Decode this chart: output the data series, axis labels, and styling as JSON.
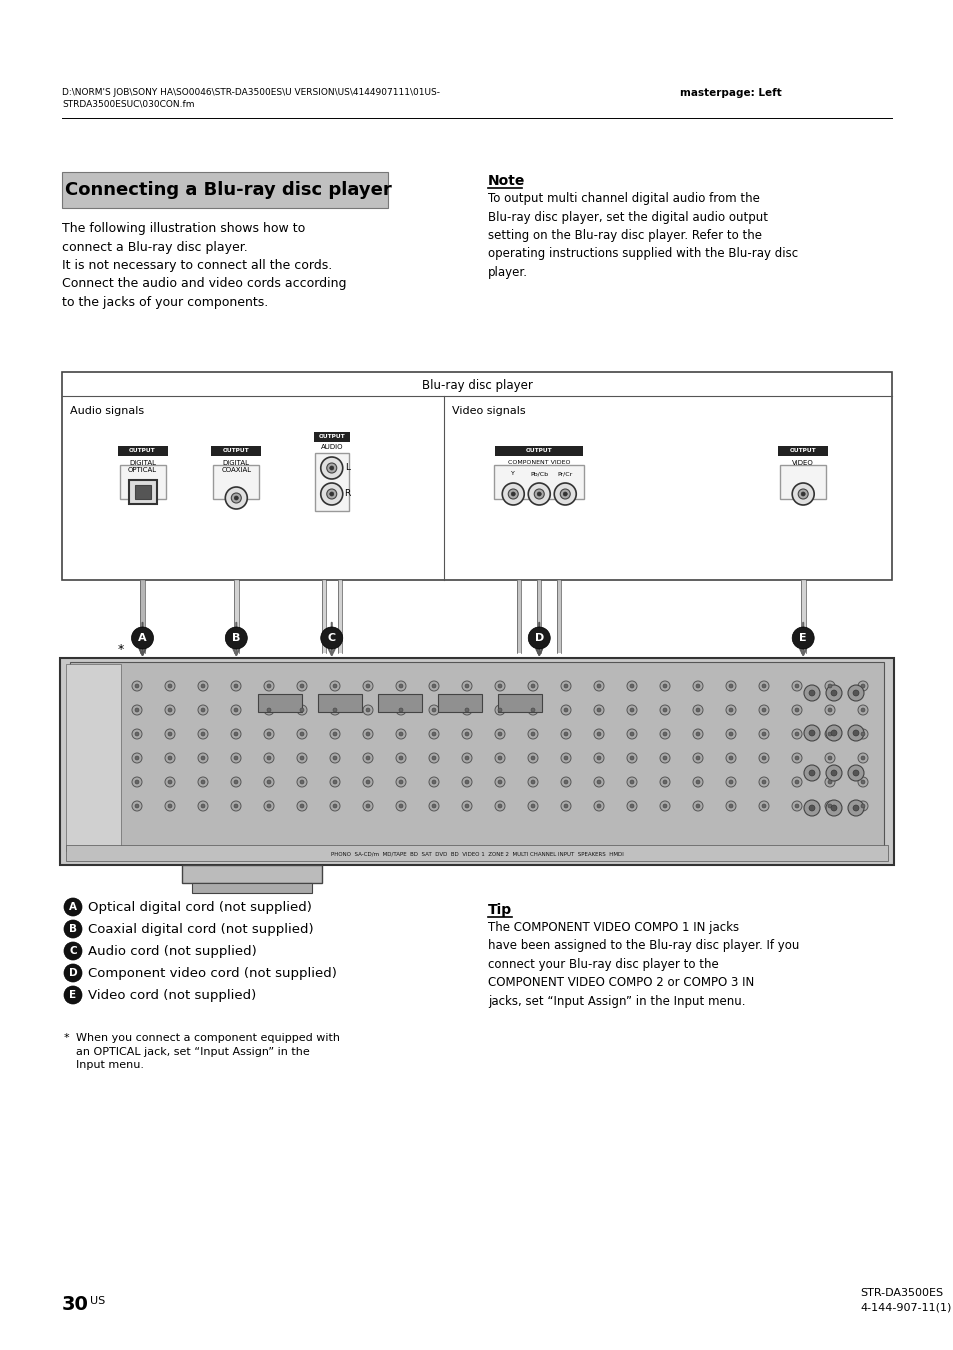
{
  "bg_color": "#ffffff",
  "header_text_left": "D:\\NORM'S JOB\\SONY HA\\SO0046\\STR-DA3500ES\\U VERSION\\US\\4144907111\\01US-\nSTRDA3500ESUC\\030CON.fm",
  "header_text_right": "masterpage: Left",
  "title": "Connecting a Blu-ray disc player",
  "title_bg": "#c0c0c0",
  "body_text_left": "The following illustration shows how to\nconnect a Blu-ray disc player.\nIt is not necessary to connect all the cords.\nConnect the audio and video cords according\nto the jacks of your components.",
  "note_title": "Note",
  "note_body": "To output multi channel digital audio from the\nBlu-ray disc player, set the digital audio output\nsetting on the Blu-ray disc player. Refer to the\noperating instructions supplied with the Blu-ray disc\nplayer.",
  "diagram_title": "Blu-ray disc player",
  "diagram_audio_label": "Audio signals",
  "diagram_video_label": "Video signals",
  "cable_labels": [
    {
      "letter": "A",
      "desc": "Optical digital cord (not supplied)"
    },
    {
      "letter": "B",
      "desc": "Coaxial digital cord (not supplied)"
    },
    {
      "letter": "C",
      "desc": "Audio cord (not supplied)"
    },
    {
      "letter": "D",
      "desc": "Component video cord (not supplied)"
    },
    {
      "letter": "E",
      "desc": "Video cord (not supplied)"
    }
  ],
  "footnote_star": "*",
  "footnote_text": "When you connect a component equipped with\nan OPTICAL jack, set “Input Assign” in the\nInput menu.",
  "tip_title": "Tip",
  "tip_body": "The COMPONENT VIDEO COMPO 1 IN jacks\nhave been assigned to the Blu-ray disc player. If you\nconnect your Blu-ray disc player to the\nCOMPONENT VIDEO COMPO 2 or COMPO 3 IN\njacks, set “Input Assign” in the Input menu.",
  "page_number": "30",
  "page_suffix": "US",
  "model_line1": "STR-DA3500ES",
  "model_line2": "4-144-907-11(1)"
}
